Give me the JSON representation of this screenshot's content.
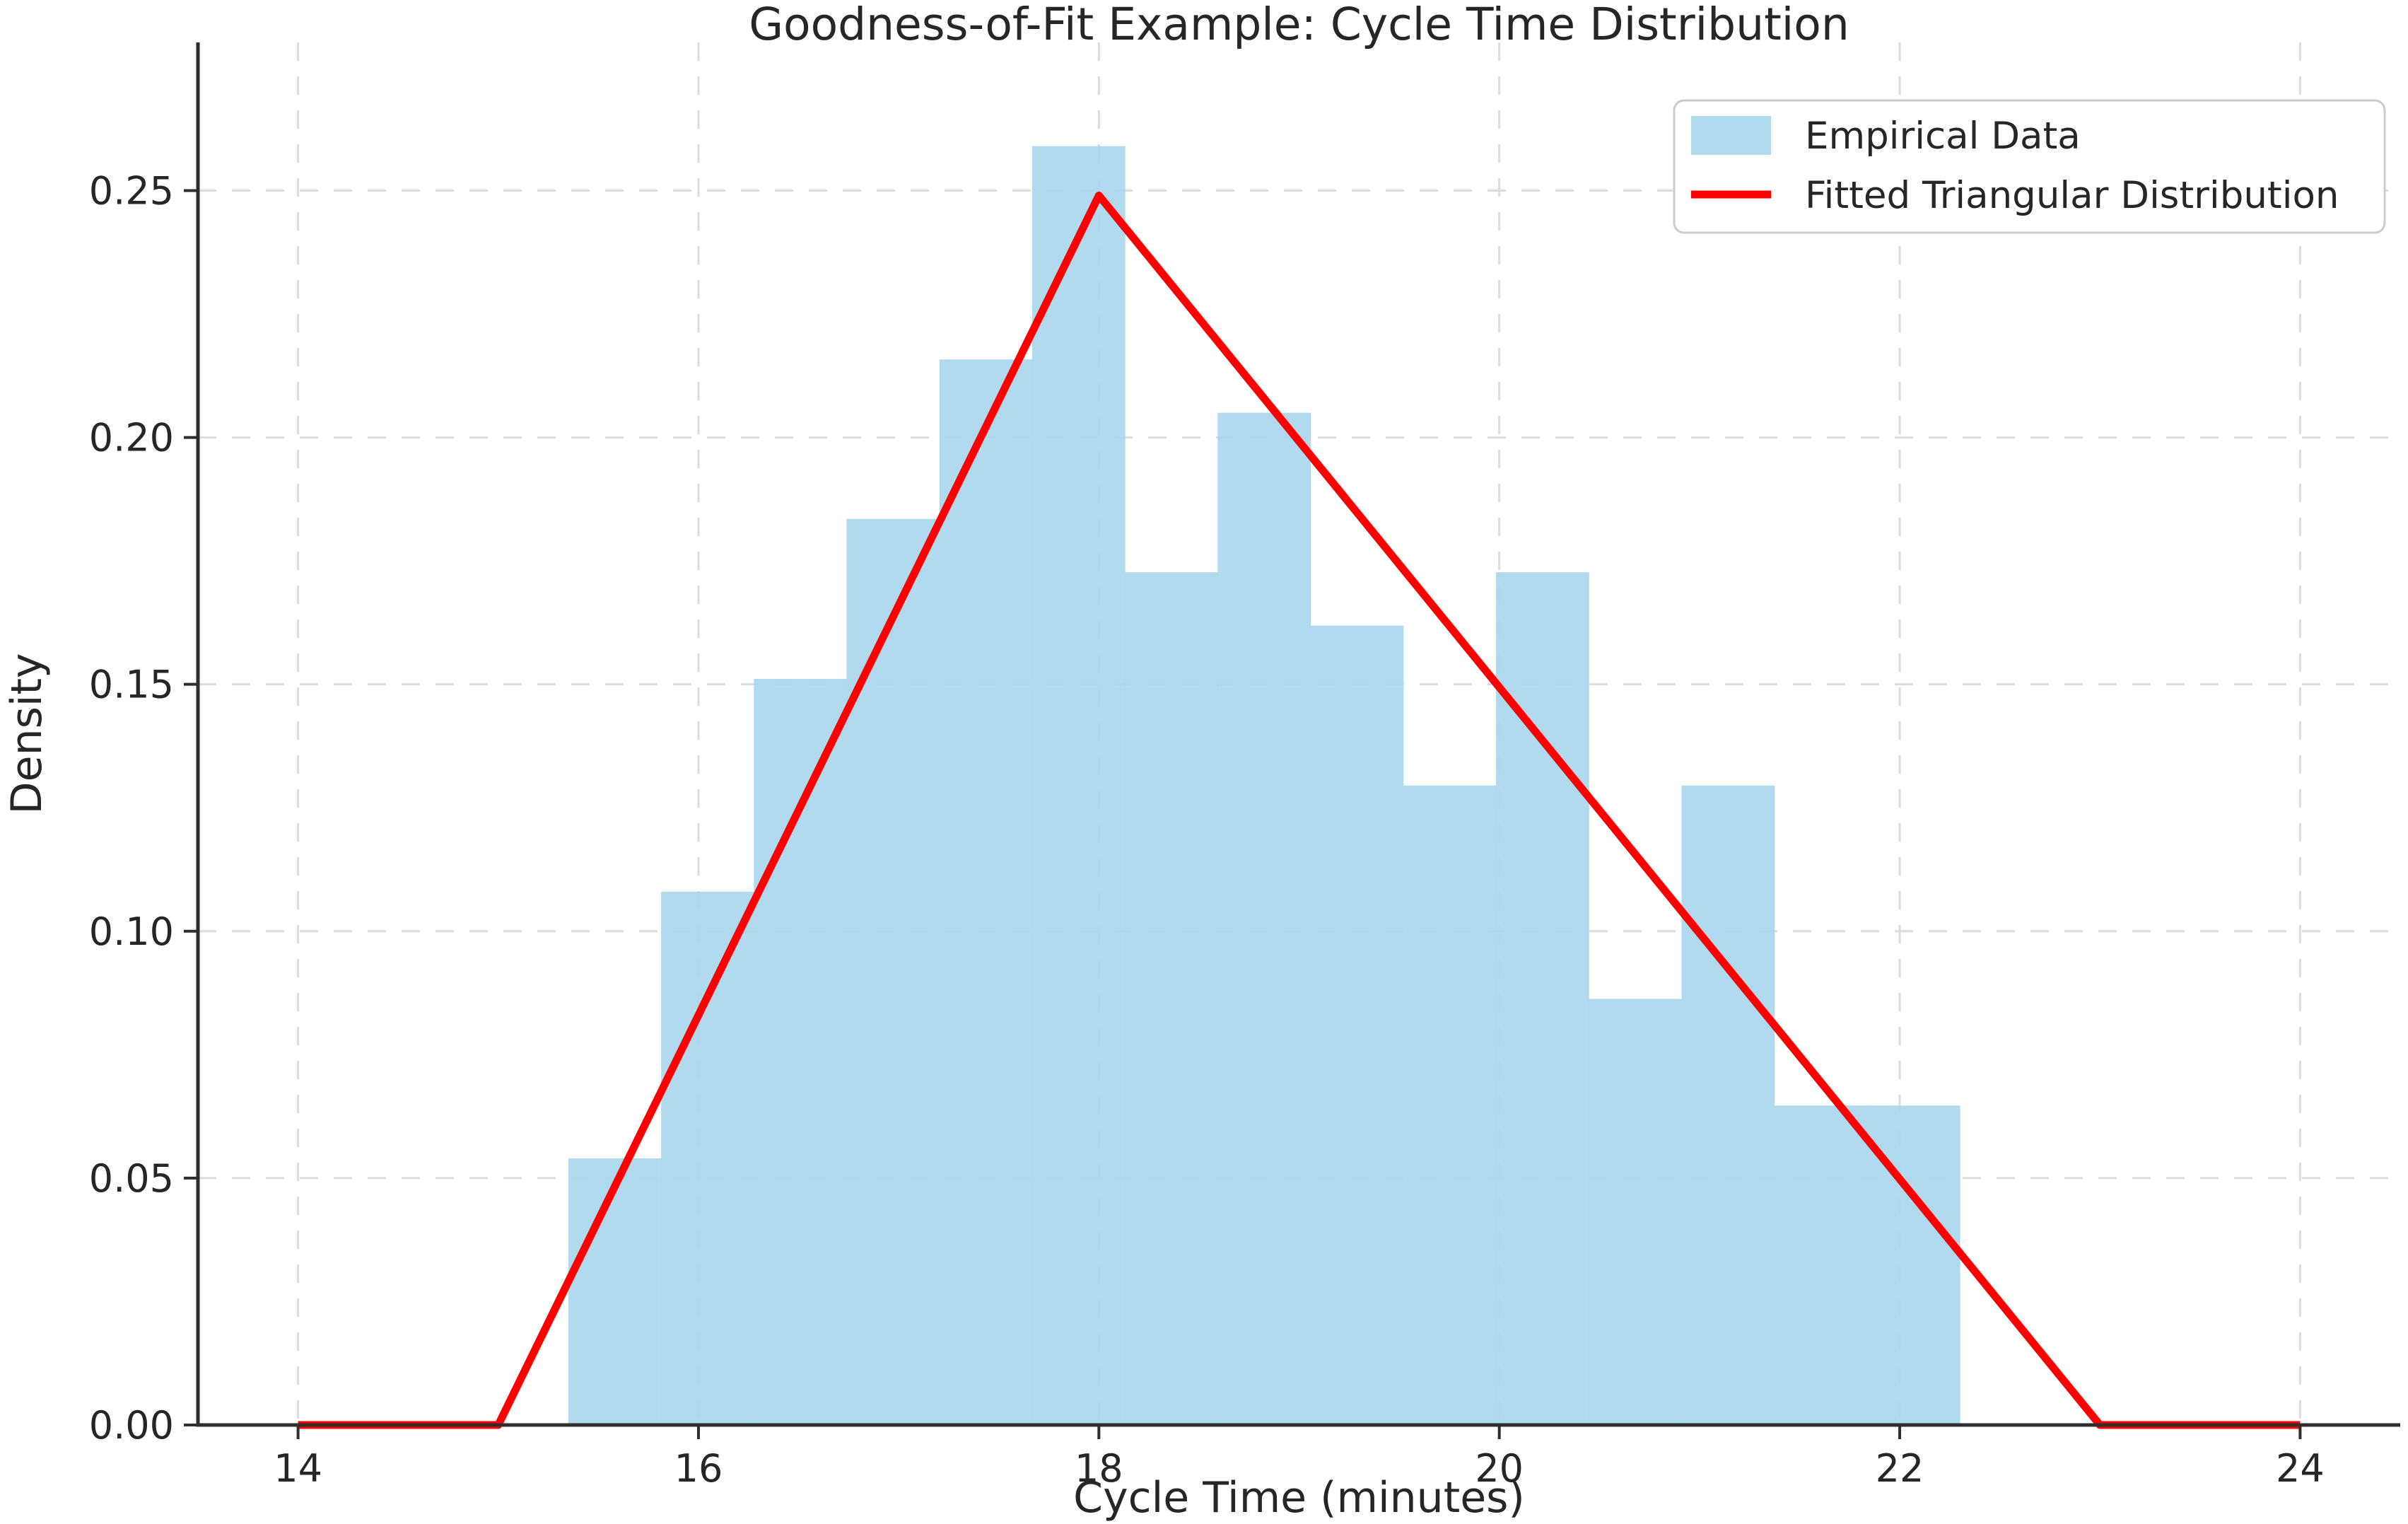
{
  "figure": {
    "background": "#FFFFFF"
  },
  "chart_data": {
    "type": "bar",
    "subtype": "histogram_with_fitted_line",
    "title": "Goodness-of-Fit Example: Cycle Time Distribution",
    "xlabel": "Cycle Time (minutes)",
    "ylabel": "Density",
    "xlim": [
      13.5,
      24.5
    ],
    "ylim": [
      0,
      0.28
    ],
    "grid": true,
    "x_ticks": [
      "14",
      "16",
      "18",
      "20",
      "22",
      "24"
    ],
    "x_tick_values": [
      14,
      16,
      18,
      20,
      22,
      24
    ],
    "y_ticks": [
      "0.00",
      "0.05",
      "0.10",
      "0.15",
      "0.20",
      "0.25"
    ],
    "y_tick_values": [
      0,
      0.05,
      0.1,
      0.15,
      0.2,
      0.25
    ],
    "series": [
      {
        "name": "Empirical Data",
        "type": "histogram",
        "color": "#A9D6EC",
        "fill_opacity": 0.9,
        "bin_start": 15.35,
        "bin_width": 0.46333,
        "densities": [
          0.054,
          0.108,
          0.1511,
          0.1835,
          0.2158,
          0.259,
          0.1727,
          0.205,
          0.1619,
          0.1295,
          0.1727,
          0.0863,
          0.1295,
          0.0647,
          0.0647
        ]
      },
      {
        "name": "Fitted Triangular Distribution",
        "type": "line",
        "color": "#FF0000",
        "x": [
          14,
          15,
          18,
          23,
          24
        ],
        "y": [
          0,
          0,
          0.249,
          0,
          0
        ]
      }
    ],
    "legend": {
      "position": "upper right",
      "entries": [
        {
          "label": "Empirical Data",
          "swatch": "patch",
          "color": "#A9D6EC"
        },
        {
          "label": "Fitted Triangular Distribution",
          "swatch": "line",
          "color": "#FF0000"
        }
      ]
    },
    "colors": {
      "grid": "#DCDCDC",
      "spine": "#2E2E2E",
      "text": "#262626",
      "legend_border": "#CCCCCC",
      "legend_background": "#FFFFFF"
    }
  }
}
